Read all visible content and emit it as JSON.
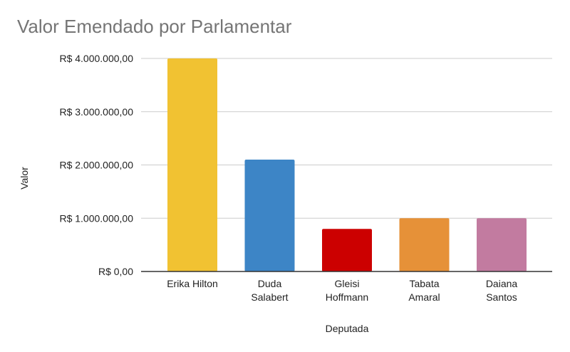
{
  "chart_data": {
    "type": "bar",
    "title": "Valor Emendado por Parlamentar",
    "xlabel": "Deputada",
    "ylabel": "Valor",
    "categories": [
      [
        "Erika Hilton"
      ],
      [
        "Duda",
        "Salabert"
      ],
      [
        "Gleisi",
        "Hoffmann"
      ],
      [
        "Tabata",
        "Amaral"
      ],
      [
        "Daiana",
        "Santos"
      ]
    ],
    "values": [
      4000000,
      2100000,
      800000,
      1000000,
      1000000
    ],
    "colors": [
      "#f1c232",
      "#3d85c6",
      "#cc0000",
      "#e69138",
      "#c27ba0"
    ],
    "ylim": [
      0,
      4000000
    ],
    "yticks": [
      0,
      1000000,
      2000000,
      3000000,
      4000000
    ],
    "ytick_labels": [
      "R$ 0,00",
      "R$ 1.000.000,00",
      "R$ 2.000.000,00",
      "R$ 3.000.000,00",
      "R$ 4.000.000,00"
    ],
    "grid": true,
    "legend": "none"
  }
}
